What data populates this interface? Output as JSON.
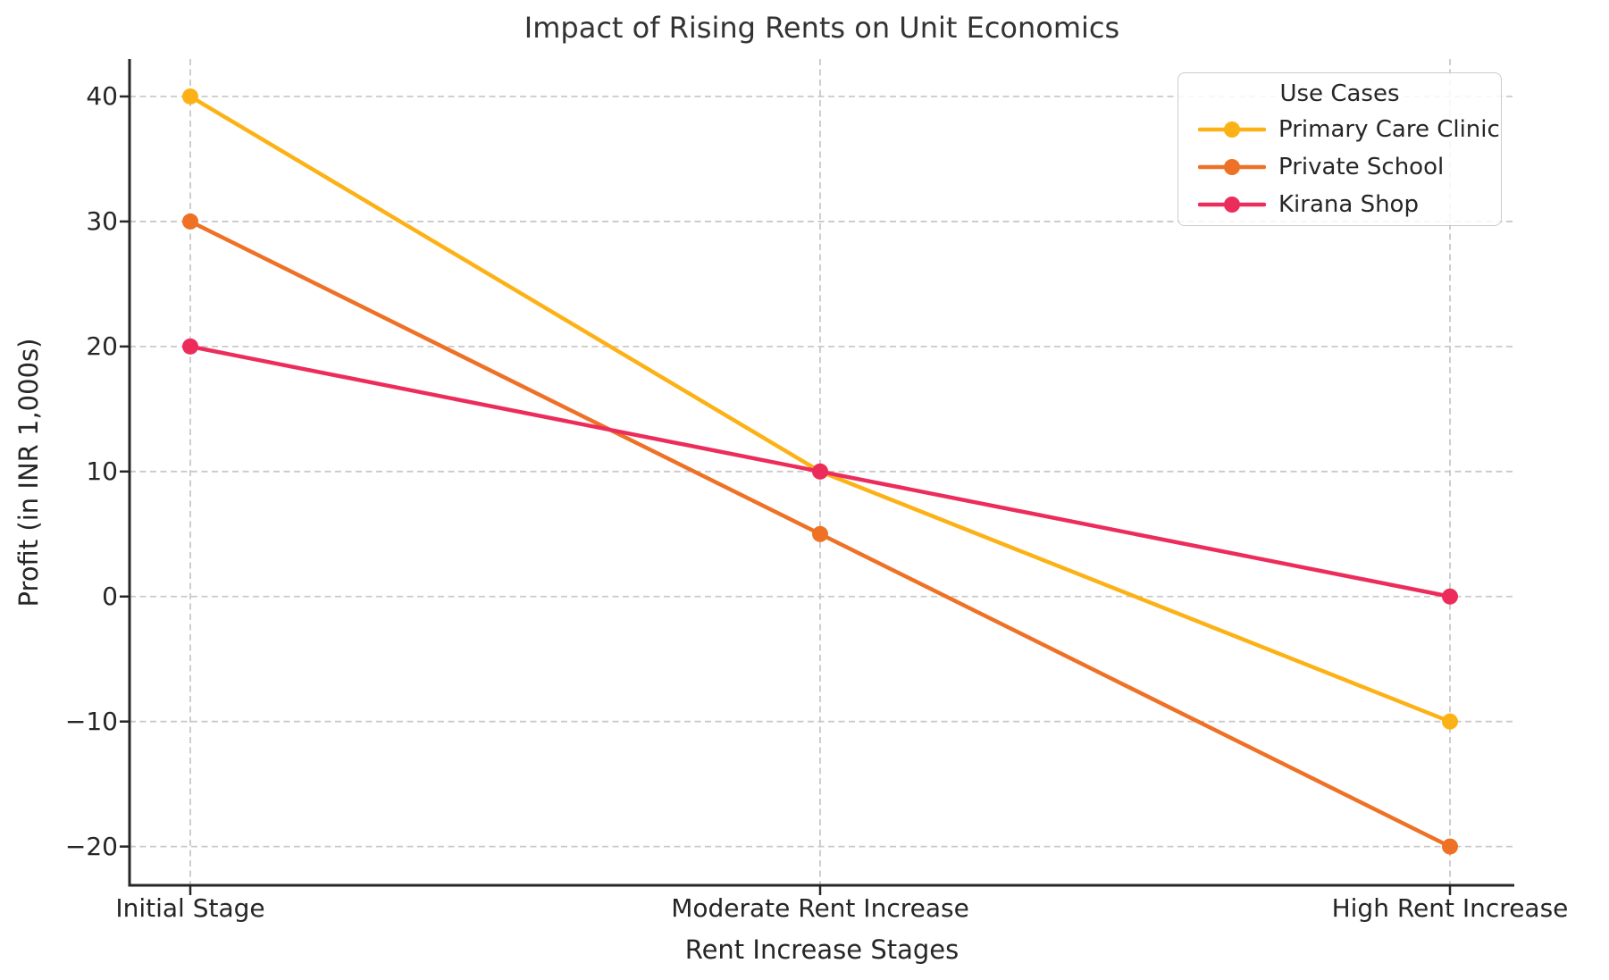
{
  "chart_data": {
    "type": "line",
    "title": "Impact of Rising Rents on Unit Economics",
    "xlabel": "Rent Increase Stages",
    "ylabel": "Profit (in INR 1,000s)",
    "legend_title": "Use Cases",
    "legend_position": "upper right",
    "grid": true,
    "grid_style": "dashed",
    "categories": [
      "Initial Stage",
      "Moderate Rent Increase",
      "High Rent Increase"
    ],
    "series": [
      {
        "name": "Primary Care Clinic",
        "color": "#FCB216",
        "values": [
          40,
          10,
          -10
        ]
      },
      {
        "name": "Private School",
        "color": "#EE7125",
        "values": [
          30,
          5,
          -20
        ]
      },
      {
        "name": "Kirana Shop",
        "color": "#EC2D5C",
        "values": [
          20,
          10,
          0
        ]
      }
    ],
    "yticks": [
      {
        "value": 40,
        "label": "40"
      },
      {
        "value": 30,
        "label": "30"
      },
      {
        "value": 20,
        "label": "20"
      },
      {
        "value": 10,
        "label": "10"
      },
      {
        "value": 0,
        "label": "0"
      },
      {
        "value": -10,
        "label": "−10"
      },
      {
        "value": -20,
        "label": "−20"
      }
    ],
    "ylim": [
      -23.1,
      43.0
    ],
    "colors": {
      "grid": "#c9c9c9",
      "spine": "#262626",
      "tick_text": "#262626",
      "title_text": "#333333",
      "background": "#ffffff"
    }
  }
}
